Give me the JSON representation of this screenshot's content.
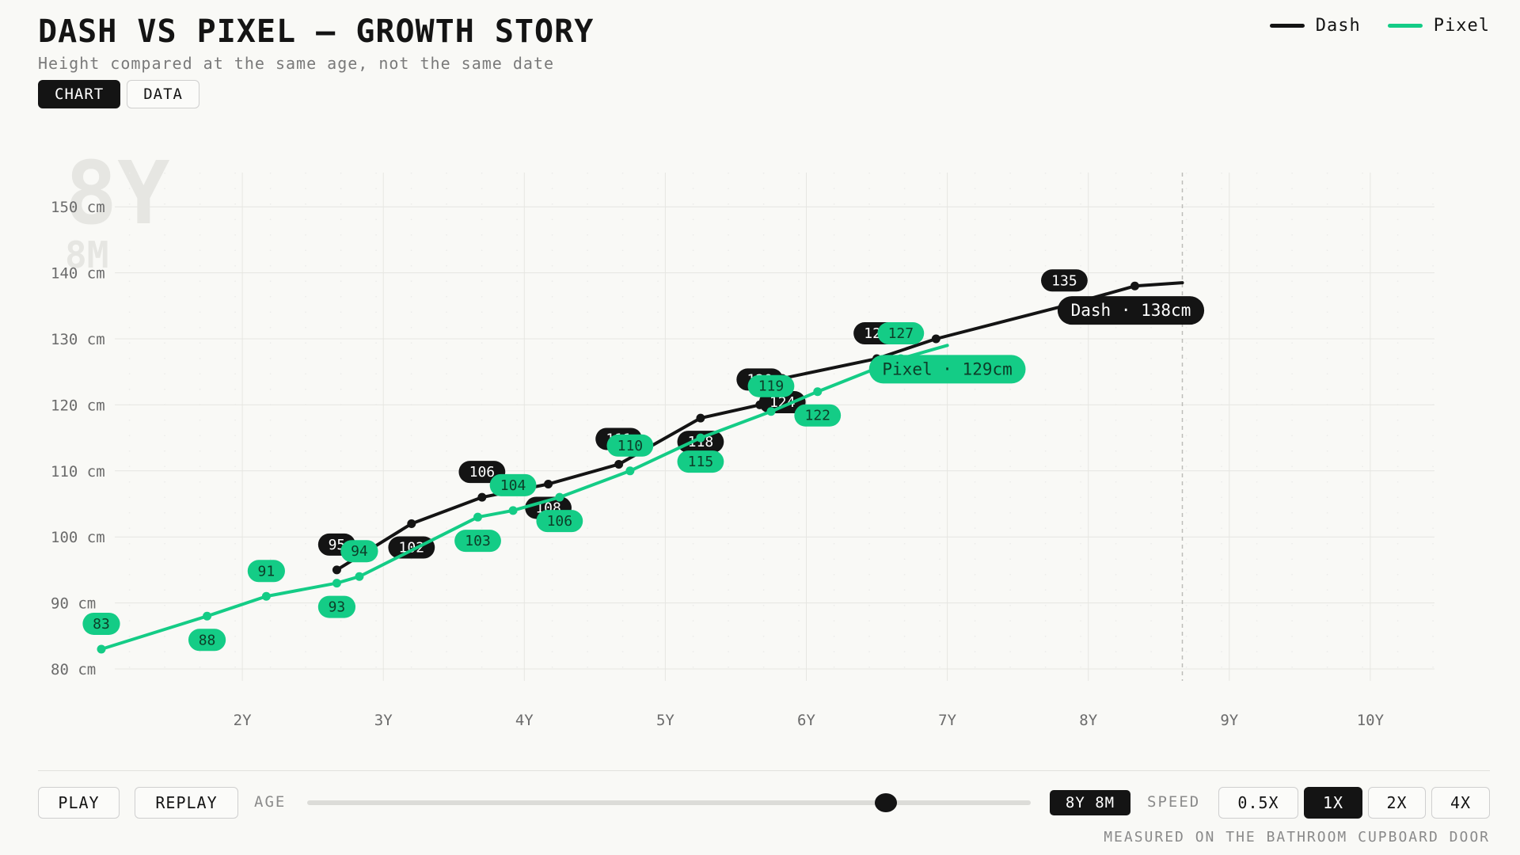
{
  "header": {
    "title": "DASH VS PIXEL — GROWTH STORY",
    "subtitle": "Height compared at the same age, not the same date",
    "tabs": [
      {
        "label": "CHART",
        "active": true
      },
      {
        "label": "DATA",
        "active": false
      }
    ]
  },
  "legend": [
    {
      "name": "Dash",
      "color": "#141414"
    },
    {
      "name": "Pixel",
      "color": "#14cc86"
    }
  ],
  "watermark": {
    "years": "8Y",
    "months": "8M"
  },
  "chart_data": {
    "type": "line",
    "title": "DASH VS PIXEL — GROWTH STORY",
    "subtitle": "Height compared at the same age, not the same date",
    "xlabel": "",
    "ylabel": "",
    "x_unit": "years",
    "xlim": [
      1.2,
      10.5
    ],
    "ylim": [
      77,
      155
    ],
    "x_ticks": [
      {
        "value": 2,
        "label": "2Y"
      },
      {
        "value": 3,
        "label": "3Y"
      },
      {
        "value": 4,
        "label": "4Y"
      },
      {
        "value": 5,
        "label": "5Y"
      },
      {
        "value": 6,
        "label": "6Y"
      },
      {
        "value": 7,
        "label": "7Y"
      },
      {
        "value": 8,
        "label": "8Y"
      },
      {
        "value": 9,
        "label": "9Y"
      },
      {
        "value": 10,
        "label": "10Y"
      }
    ],
    "y_ticks": [
      {
        "value": 80,
        "label": "80 cm"
      },
      {
        "value": 90,
        "label": "90 cm"
      },
      {
        "value": 100,
        "label": "100 cm"
      },
      {
        "value": 110,
        "label": "110 cm"
      },
      {
        "value": 120,
        "label": "120 cm"
      },
      {
        "value": 130,
        "label": "130 cm"
      },
      {
        "value": 140,
        "label": "140 cm"
      },
      {
        "value": 150,
        "label": "150 cm"
      }
    ],
    "grid": true,
    "legend_position": "top-right",
    "current_age": {
      "value": 8.667,
      "label": "8Y 8M"
    },
    "series": [
      {
        "name": "Dash",
        "color": "#141414",
        "points": [
          {
            "x": 2.67,
            "y": 95,
            "label": "95"
          },
          {
            "x": 3.2,
            "y": 102,
            "label": "102"
          },
          {
            "x": 3.7,
            "y": 106,
            "label": "106"
          },
          {
            "x": 4.17,
            "y": 108,
            "label": "108"
          },
          {
            "x": 4.67,
            "y": 111,
            "label": "111"
          },
          {
            "x": 5.25,
            "y": 118,
            "label": "118"
          },
          {
            "x": 5.67,
            "y": 120,
            "label": "120"
          },
          {
            "x": 5.83,
            "y": 124,
            "label": "124"
          },
          {
            "x": 6.5,
            "y": 127,
            "label": "127"
          },
          {
            "x": 6.92,
            "y": 130,
            "label": ""
          },
          {
            "x": 7.83,
            "y": 135,
            "label": "135"
          },
          {
            "x": 8.33,
            "y": 138,
            "label": ""
          },
          {
            "x": 8.667,
            "y": 138.5,
            "label": ""
          }
        ],
        "current": {
          "label": "Dash · 138cm",
          "value": 138
        }
      },
      {
        "name": "Pixel",
        "color": "#14cc86",
        "points": [
          {
            "x": 1.0,
            "y": 83,
            "label": "83"
          },
          {
            "x": 1.75,
            "y": 88,
            "label": "88"
          },
          {
            "x": 2.17,
            "y": 91,
            "label": "91"
          },
          {
            "x": 2.67,
            "y": 93,
            "label": "93"
          },
          {
            "x": 2.83,
            "y": 94,
            "label": "94"
          },
          {
            "x": 3.67,
            "y": 103,
            "label": "103"
          },
          {
            "x": 3.92,
            "y": 104,
            "label": "104"
          },
          {
            "x": 4.25,
            "y": 106,
            "label": "106"
          },
          {
            "x": 4.75,
            "y": 110,
            "label": "110"
          },
          {
            "x": 5.25,
            "y": 115,
            "label": "115"
          },
          {
            "x": 5.75,
            "y": 119,
            "label": "119"
          },
          {
            "x": 6.08,
            "y": 122,
            "label": "122"
          },
          {
            "x": 6.67,
            "y": 127,
            "label": "127"
          },
          {
            "x": 7.0,
            "y": 129,
            "label": ""
          }
        ],
        "current": {
          "label": "Pixel · 129cm",
          "value": 129
        }
      }
    ]
  },
  "controls": {
    "play_label": "PLAY",
    "replay_label": "REPLAY",
    "age_label": "AGE",
    "age_value_label": "8Y 8M",
    "age_progress": 0.8,
    "speed_label": "SPEED",
    "speeds": [
      {
        "label": "0.5X",
        "active": false
      },
      {
        "label": "1X",
        "active": true
      },
      {
        "label": "2X",
        "active": false
      },
      {
        "label": "4X",
        "active": false
      }
    ]
  },
  "footnote": "MEASURED ON THE BATHROOM CUPBOARD DOOR"
}
